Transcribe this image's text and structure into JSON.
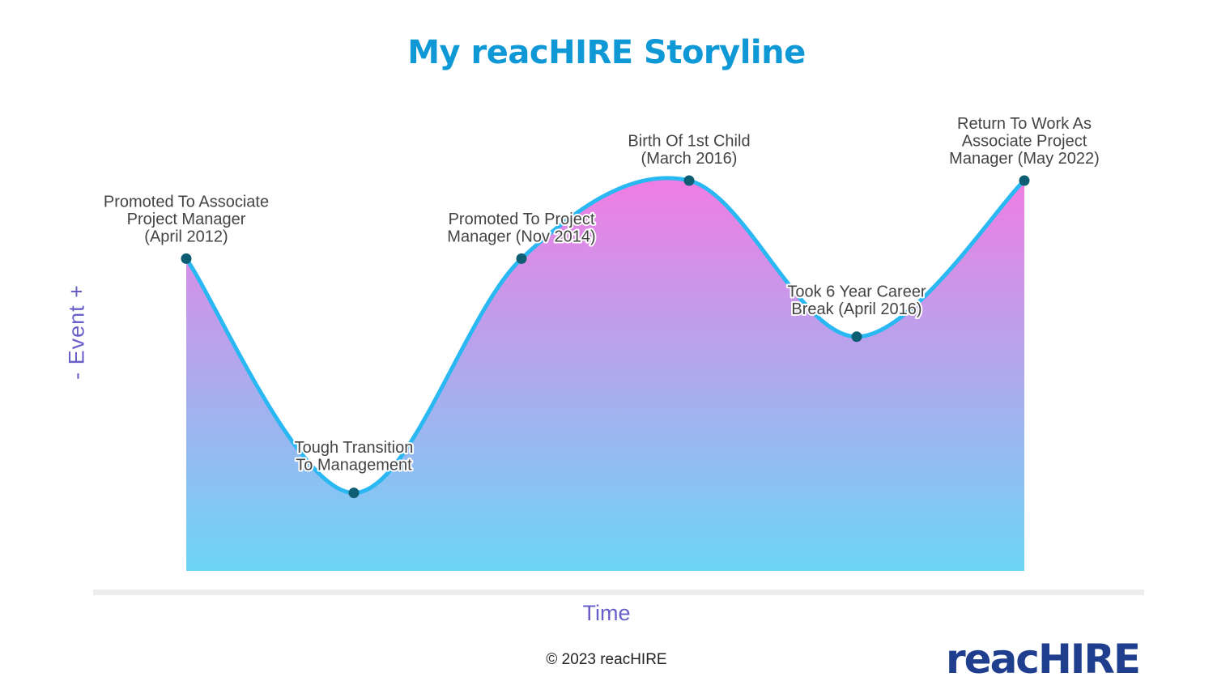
{
  "title": "My reacHIRE Storyline",
  "y_axis_label": "-   Event   +",
  "x_axis_label": "Time",
  "copyright": "© 2023 reacHIRE",
  "logo_text": "reacHIRE",
  "colors": {
    "title": "#0f98d6",
    "axis_label": "#6a5fc9",
    "line": "#2ab8f2",
    "point": "#0d5e73",
    "fill_top": "#f07de3",
    "fill_bottom": "#6dd5f7",
    "logo": "#1f3f8e"
  },
  "chart_data": {
    "type": "area",
    "title": "My reacHIRE Storyline",
    "xlabel": "Time",
    "ylabel": "-   Event   +",
    "x_tick_labels_shown": false,
    "y_tick_labels_shown": false,
    "grid": false,
    "ylim": [
      0,
      100
    ],
    "points": [
      {
        "x": 1,
        "y": 80,
        "label": [
          "Promoted To Associate",
          "Project Manager",
          "(April 2012)"
        ],
        "label_position": "above"
      },
      {
        "x": 2,
        "y": 20,
        "label": [
          "Tough Transition",
          "To Management"
        ],
        "label_position": "above-overlap"
      },
      {
        "x": 3,
        "y": 80,
        "label": [
          "Promoted To Project",
          "Manager (Nov 2014)"
        ],
        "label_position": "above"
      },
      {
        "x": 4,
        "y": 100,
        "label": [
          "Birth Of 1st Child",
          "(March 2016)"
        ],
        "label_position": "above"
      },
      {
        "x": 5,
        "y": 60,
        "label": [
          "Took 6 Year Career",
          "Break (April 2016)"
        ],
        "label_position": "above-overlap"
      },
      {
        "x": 6,
        "y": 100,
        "label": [
          "Return To Work As",
          "Associate Project",
          "Manager (May 2022)"
        ],
        "label_position": "above"
      }
    ]
  }
}
